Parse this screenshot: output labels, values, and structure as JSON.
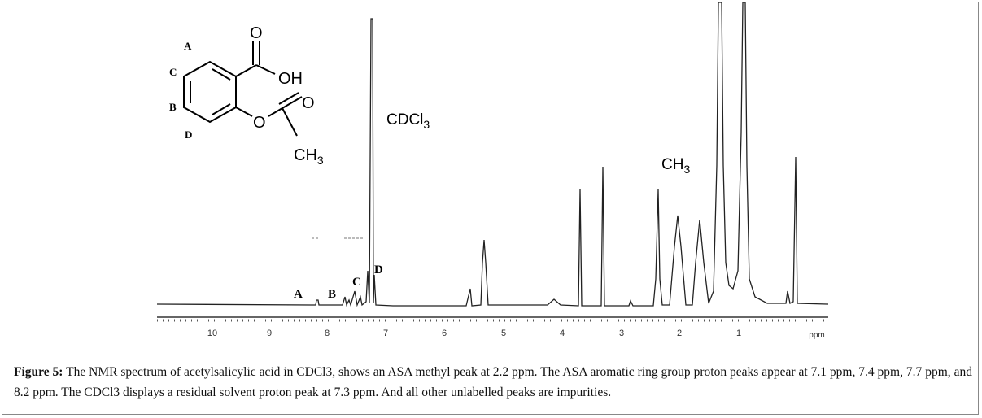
{
  "structure": {
    "o1": "O",
    "oh": "OH",
    "o2": "O",
    "o3": "O",
    "ch3": {
      "text": "CH",
      "sub": "3"
    },
    "positions": [
      "A",
      "C",
      "B",
      "D"
    ]
  },
  "spectrum": {
    "peak_labels": [
      "A",
      "B",
      "C",
      "D"
    ],
    "solvent": {
      "text": "CDCl",
      "sub": "3"
    },
    "methyl": {
      "text": "CH",
      "sub": "3"
    },
    "axis_ticks": [
      "10",
      "9",
      "8",
      "7",
      "6",
      "5",
      "4",
      "3",
      "2",
      "1"
    ],
    "axis_unit": "ppm"
  },
  "caption": {
    "label": "Figure 5:",
    "text": "The NMR spectrum of acetylsalicylic acid in CDCl3, shows an ASA methyl peak at 2.2 ppm. The ASA aromatic ring group proton peaks appear at 7.1 ppm, 7.4 ppm, 7.7 ppm, and 8.2 ppm. The CDCl3 displays a residual solvent proton peak at 7.3 ppm. And all other unlabelled peaks are impurities."
  }
}
